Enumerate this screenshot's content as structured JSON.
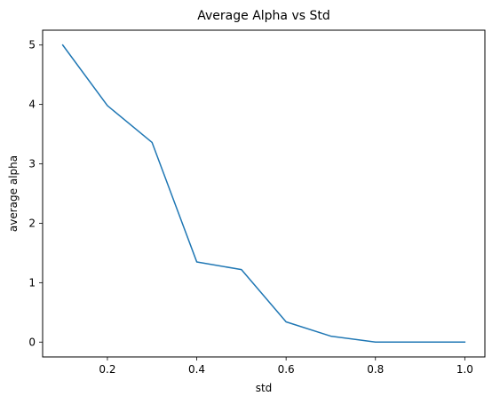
{
  "chart_data": {
    "type": "line",
    "title": "Average Alpha vs Std",
    "xlabel": "std",
    "ylabel": "average alpha",
    "xlim": [
      0.055,
      1.045
    ],
    "ylim": [
      -0.25,
      5.25
    ],
    "xticks": [
      0.2,
      0.4,
      0.6,
      0.8,
      1.0
    ],
    "xtick_labels": [
      "0.2",
      "0.4",
      "0.6",
      "0.8",
      "1.0"
    ],
    "yticks": [
      0,
      1,
      2,
      3,
      4,
      5
    ],
    "ytick_labels": [
      "0",
      "1",
      "2",
      "3",
      "4",
      "5"
    ],
    "grid": false,
    "series": [
      {
        "color": "#1f77b4",
        "x": [
          0.1,
          0.2,
          0.3,
          0.4,
          0.5,
          0.6,
          0.7,
          0.8,
          0.9,
          1.0
        ],
        "y": [
          5.0,
          3.98,
          3.36,
          1.35,
          1.22,
          0.34,
          0.1,
          0.0,
          0.0,
          0.0
        ]
      }
    ]
  }
}
